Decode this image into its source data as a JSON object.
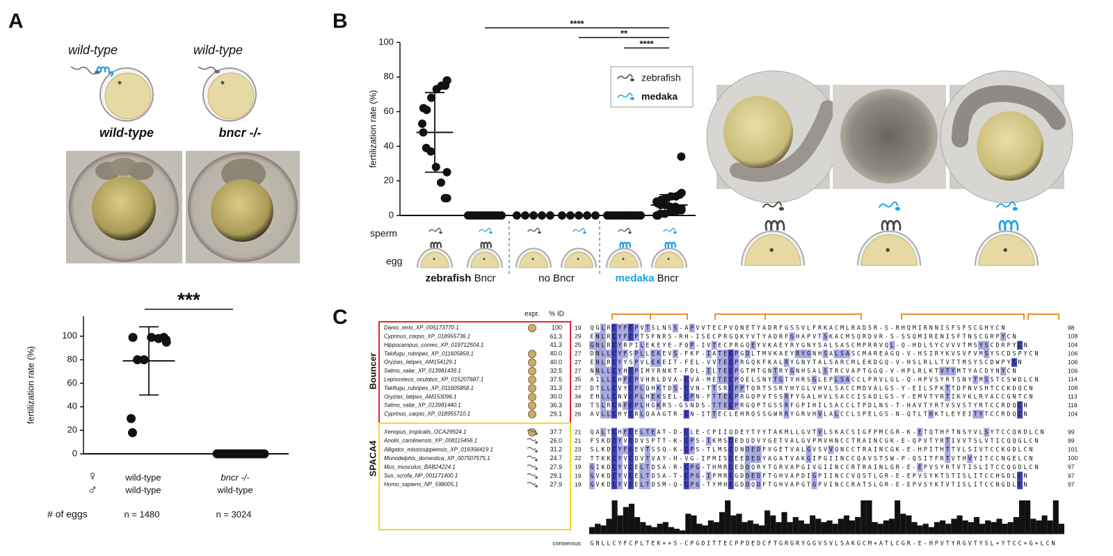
{
  "panel_labels": [
    "A",
    "B",
    "C"
  ],
  "panel_a": {
    "cartoon_labels": [
      "wild-type",
      "wild-type"
    ],
    "genotypes": [
      "wild-type",
      "bncr -/-"
    ]
  },
  "chart_data": [
    {
      "type": "dotplot",
      "y_label": "fertilization rate (%)",
      "ylim": [
        0,
        117
      ],
      "yticks": [
        0,
        20,
        40,
        60,
        80,
        100
      ],
      "color": "#111111",
      "groups": [
        {
          "values": [
            97,
            95,
            99,
            98,
            99,
            80,
            80,
            99,
            30,
            18
          ],
          "mean": 79,
          "sd": 29
        },
        {
          "values": [
            0,
            0,
            0,
            0,
            0,
            0,
            0,
            0,
            0,
            0,
            0,
            0,
            0,
            0,
            0,
            0,
            0,
            0
          ],
          "mean": 0,
          "sd": 0
        }
      ],
      "significance": [
        {
          "label": "***",
          "from": 0,
          "to": 1
        }
      ],
      "row_symbols": [
        "♀",
        "♂"
      ],
      "egg_categories": [
        "wild-type",
        "bncr -/-"
      ],
      "sperm_categories": [
        "wild-type",
        "wild-type"
      ],
      "count_label": "# of eggs",
      "counts": [
        "n = 1480",
        "n = 3024"
      ]
    },
    {
      "type": "dotplot",
      "y_label": "fertilization rate (%)",
      "ylim": [
        0,
        100
      ],
      "yticks": [
        0,
        20,
        40,
        60,
        80,
        100
      ],
      "color": "#111111",
      "groups": [
        {
          "values": [
            78,
            78,
            75,
            75,
            73,
            68,
            61,
            62,
            53,
            48,
            39,
            37,
            28,
            19,
            10,
            10,
            25
          ],
          "mean": 48,
          "sd": 23
        },
        {
          "values": [
            0,
            0,
            0,
            0,
            0,
            0,
            0,
            0,
            0,
            0,
            0,
            0
          ]
        },
        {
          "values": [
            0,
            0,
            0,
            0,
            0
          ]
        },
        {
          "values": [
            0,
            0,
            0,
            0,
            0
          ]
        },
        {
          "values": [
            0,
            0,
            0,
            0,
            0,
            0,
            0,
            0,
            0,
            0,
            0,
            0
          ]
        },
        {
          "values": [
            34,
            13,
            12,
            11,
            11,
            10,
            9,
            8,
            8,
            7,
            6,
            6,
            5,
            5,
            4,
            4,
            3,
            3,
            2,
            2,
            1,
            1,
            0,
            0,
            0
          ],
          "mean": 6,
          "sd": 6
        }
      ],
      "significance": [
        {
          "label": "****",
          "from": 1,
          "to": 5
        },
        {
          "label": "**",
          "from": 3,
          "to": 5
        },
        {
          "label": "****",
          "from": 4,
          "to": 5
        }
      ],
      "legend": [
        {
          "name": "zebrafish",
          "color": "#444444"
        },
        {
          "name": "medaka",
          "color": "#1da1e6"
        }
      ],
      "row_labels": [
        "sperm",
        "egg"
      ],
      "sperm": [
        "zebrafish",
        "medaka",
        "zebrafish",
        "medaka",
        "zebrafish",
        "medaka"
      ],
      "egg": [
        "zebrafish",
        "zebrafish",
        null,
        null,
        "medaka",
        "medaka"
      ],
      "group_labels": [
        {
          "species": "zebrafish",
          "text": "Bncr"
        },
        {
          "text": "no Bncr"
        },
        {
          "species": "medaka",
          "text": "Bncr"
        }
      ],
      "photo_sperm": [
        "zebrafish",
        "medaka",
        "medaka"
      ],
      "photo_egg": [
        "zebrafish",
        "zebrafish",
        "medaka"
      ]
    }
  ],
  "alignment": {
    "headers": [
      "expr.",
      "% ID"
    ],
    "consensus_label": "consensus",
    "consensus": "GNLLCYFCPLTEK++S-CPGDITTECPPDEDCFTGRGRYGGVSVLSAKGCM+ATLCGR-E-HPVTYRGVTYSL+YTCC+G+LCN",
    "conservation": [
      20,
      30,
      25,
      45,
      100,
      55,
      80,
      90,
      50,
      35,
      25,
      20,
      30,
      35,
      20,
      15,
      10,
      60,
      55,
      30,
      25,
      40,
      35,
      65,
      100,
      55,
      60,
      35,
      40,
      30,
      25,
      70,
      55,
      35,
      65,
      35,
      50,
      40,
      30,
      55,
      45,
      35,
      40,
      30,
      45,
      55,
      40,
      50,
      100,
      100,
      35,
      30,
      40,
      45,
      100,
      60,
      55,
      35,
      25,
      30,
      20,
      35,
      40,
      30,
      45,
      55,
      40,
      35,
      50,
      30,
      40,
      35,
      45,
      30,
      35,
      50,
      100,
      100,
      45,
      40,
      55,
      40,
      100,
      30
    ],
    "families": [
      {
        "name": "Bouncer",
        "rows": [
          {
            "name": "Danio_rerio_XP_005173770.1",
            "expr": "egg",
            "identity": "100",
            "start": 19,
            "sequence": "QGLRCYFCPVTSLNSS-APVVTECPVQNETYADRFGSSVLFRKACMLRADSR-S-RHQMIRNNISFSFSCGHYCN",
            "end": 98
          },
          {
            "name": "Cyprinus_carpio_XP_018955736.1",
            "expr": null,
            "identity": "61.3",
            "start": 29,
            "sequence": "ENLRCYFCPTSFNRS-RH-ISECPRGQKYVTYADRFGHAPVTSKACMSQRDVR-S-SSQMIRENISFTNSCGRPYCN",
            "end": 108
          },
          {
            "name": "Hippocampus_comes_XP_019712504.1",
            "expr": null,
            "identity": "41.3",
            "start": 25,
            "sequence": "GNLRCYRPILEKEYE-FQP-IVTECPRGQEYVKAEYRYGNYSALSASCMPRRVQL-Q-HDLSYCVVVTMSYSCDRPYCN",
            "end": 104
          },
          {
            "name": "Takifugu_rubripes_XP_011605859.1",
            "expr": "egg",
            "identity": "40.0",
            "start": 27,
            "sequence": "DNLLCYFSPLLEKEVS-FKF-IATECPGDLTMVKAEYRYGNHSALSASCMAREAGQ-V-HSIRYKVSVFVMSYSCDSPYCN",
            "end": 106
          },
          {
            "name": "Oryzias_latipes_AM154129.1",
            "expr": "egg",
            "identity": "40.0",
            "start": 27,
            "sequence": "ENLRCYYSPVLEKEIT-FEL-VVTECPRGQKFKALRYGNYTALSARCMLEKDGQ-V-HSLRLLTVTTMSYSCDWPYCN",
            "end": 106
          },
          {
            "name": "Salmo_salar_XP_013981439.1",
            "expr": "egg",
            "identity": "32.5",
            "start": 27,
            "sequence": "NNLLCYHCPIMYRNKT-FDL-ILTECPGTMTGNTRYGNHSALSTRCVAPTGGQ-V-HPLRLKTVTYMTYACDYNYCN",
            "end": 106
          },
          {
            "name": "Lepisosteus_oculatus_XP_015207687.1",
            "expr": "egg",
            "identity": "37.5",
            "start": 35,
            "sequence": "AILLCHFCPVHRLDVA-CVA-METECPQELSNYTGTYHRSGLEPLSACCLPRVLGL-Q-HPVSYRTSNYTMSSTCSWDLCN",
            "end": 114
          },
          {
            "name": "Takifugu_rubripes_XP_011605858.1",
            "expr": "egg",
            "identity": "31.3",
            "start": 27,
            "sequence": "DTLLCVYCPLQHKTDS-CVN-TTSRCPPTQRTSSRYHYGLVHVLSACCMDVALGS-Y-EILSFKTTDFNVSHTCCKDQCN",
            "end": 108
          },
          {
            "name": "Oryzias_latipes_AM153096.1",
            "expr": "egg",
            "identity": "30.0",
            "start": 34,
            "sequence": "EHLLCNVCPLHEKSEL-CPN-FTTECPRGQPVTSSRFYGALHVLSACCISADLGS-Y-EMVTYRTIKYKLRYACCGNTCN",
            "end": 113
          },
          {
            "name": "Salmo_salar_XP_013981440.1",
            "expr": "egg",
            "identity": "36.3",
            "start": 38,
            "sequence": "TSLRCNFCPLHGKRS-GSNDS-TTECPRGQPTGSSRFGPIHILSACCLTPDLNS-T-HAVTYRTVSVSTYRTCCRDQCN",
            "end": 118
          },
          {
            "name": "Cyprinus_carpio_XP_018955710.1",
            "expr": "egg",
            "identity": "29.1",
            "start": 26,
            "sequence": "AVLLCHYCRLQAAGTR-CN-ITTECLEHRQSSGWRRYGRVHVLALCCLSPELGS-N-QTLTHKTLEYEITYTCCRDQCN",
            "end": 104
          }
        ]
      },
      {
        "name": "SPACA4",
        "rows": [
          {
            "name": "Xenopus_tropicalis_OCA29924.1",
            "expr": "both",
            "identity": "37.7",
            "start": 21,
            "sequence": "QALTCHFCELTEAT-D-CLE-CPIIQDEYTYYTAKMLLGVTVLSKACSIGFPMCGR-K-ETQTHFTNSYVLSYTCCQKDLCN",
            "end": 99
          },
          {
            "name": "Anolis_carolinensis_XP_008115456.1",
            "expr": "sperm",
            "identity": "26.0",
            "start": 21,
            "sequence": "FSKDCYVCDVSPTT-K-CPS-IKMSCEDQDVYGETVALGVPMVHNCCTRAINCGK-E-QPVTYRTIVVTSLVTICQQGLCN",
            "end": 99
          },
          {
            "name": "Alligator_mississippiensis_XP_019356419.1",
            "expr": "sperm",
            "identity": "31.2",
            "start": 23,
            "sequence": "SLKDCYFCEVTSSQ-K-CPS-TLMSCDNDEDFVGETVALGVSVVQNCCTRAINCGK-E-HPITHTTVLSIVTCCKGDLCN",
            "end": 101
          },
          {
            "name": "Monodelphis_domestica_XP_007507575.1",
            "expr": "sperm",
            "identity": "24.7",
            "start": 22,
            "sequence": "TTKKCYVCDVTVAY-H-VG-IPMISCEEDEDYAGATVAKGIPGIINCCQAVSTSW-P-QSITFRTVTHVYITCCNGELCN",
            "end": 100
          },
          {
            "name": "Mus_musculus_BAB24224.1",
            "expr": "sperm",
            "identity": "27.9",
            "start": 19,
            "sequence": "GIKDCYVCELTDSA-R-CPG-THMRCEDDQRYTGRVAPGIVGIINCCRTRAINLGR-E-EPVSYRTVTISLITCCQGDLCN",
            "end": 97
          },
          {
            "name": "Sus_scrofa_NP_001171400.1",
            "expr": "sperm",
            "identity": "29.1",
            "start": 19,
            "sequence": "GVKDCYVCELTDSA-T-CPG-IPMRCGDDEDFTGHVAPDIGPIINCCVQSTLGR-E-EPVSYKTSTISLITCCHGDLCN",
            "end": 97
          },
          {
            "name": "Homo_sapiens_NP_598005.1",
            "expr": "sperm",
            "identity": "27.9",
            "start": 19,
            "sequence": "GVKDCYVCELTDSM-Q-CPG-TYMHCGDDQDFTGHVAPGTGPVINCCRATSLGR-E-EPVSYKTVTISLITCCNGDLCN",
            "end": 97
          }
        ]
      }
    ]
  }
}
